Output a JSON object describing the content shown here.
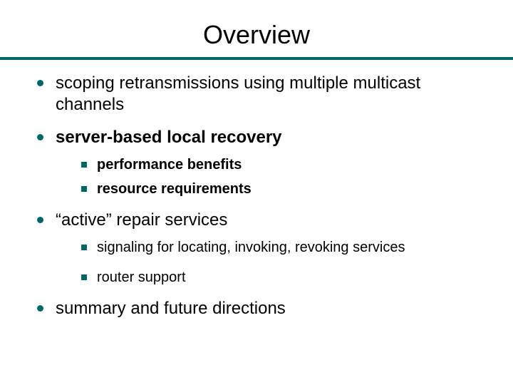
{
  "title": "Overview",
  "accent_color": "#006666",
  "background_color": "#ffffff",
  "text_color": "#000000",
  "title_fontsize": 36,
  "body_fontsize": 24,
  "sub_fontsize": 20,
  "bullets": [
    {
      "text": "scoping retransmissions using multiple multicast channels",
      "bold": false
    },
    {
      "text": "server-based local recovery",
      "bold": true,
      "sub": [
        {
          "text": "performance benefits",
          "bold": true
        },
        {
          "text": "resource requirements",
          "bold": true
        }
      ]
    },
    {
      "text": "“active” repair services",
      "bold": false,
      "sub_spaced": true,
      "sub": [
        {
          "text": "signaling for locating, invoking, revoking services",
          "bold": false
        },
        {
          "text": "router support",
          "bold": false
        }
      ]
    },
    {
      "text": "summary and future directions",
      "bold": false
    }
  ]
}
